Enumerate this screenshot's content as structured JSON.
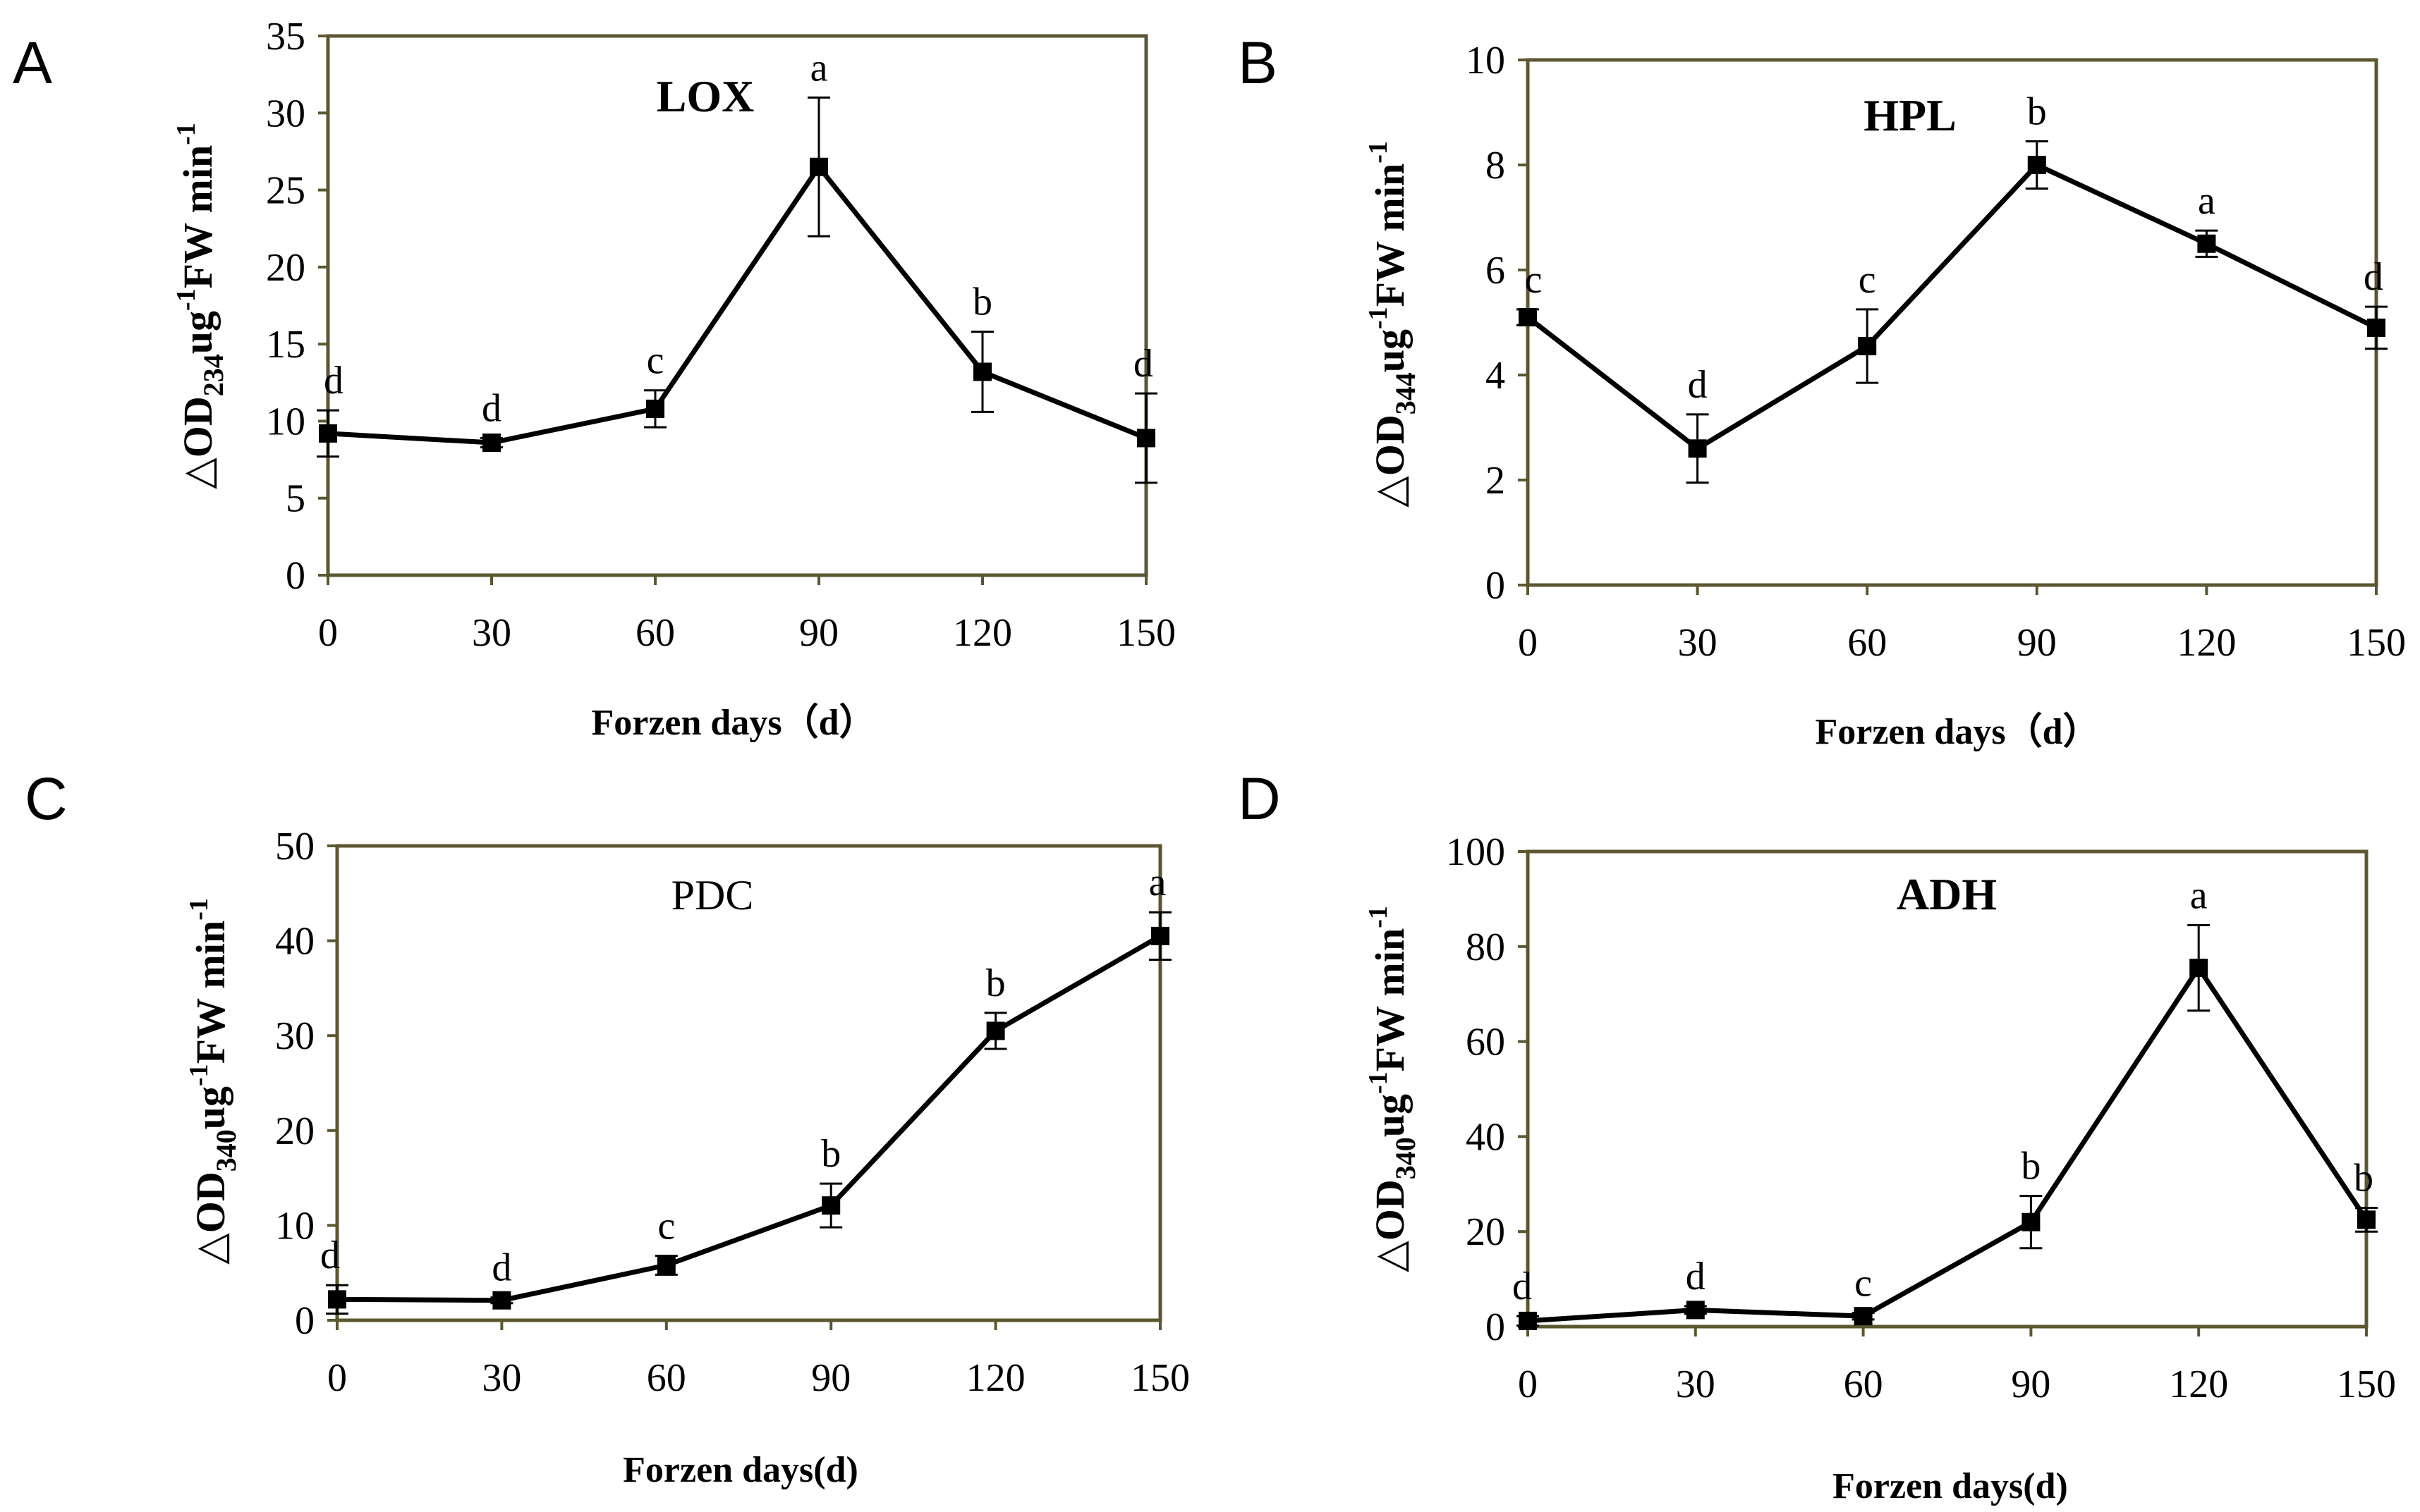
{
  "chart_data": [
    {
      "panel": "A",
      "type": "line",
      "title": "LOX",
      "title_style": "bold",
      "ylabel": [
        "△OD",
        "234",
        "ug",
        "-1",
        "FW min",
        "-1"
      ],
      "xlabel": "Forzen  days（d）",
      "x": [
        0,
        30,
        60,
        90,
        120,
        150
      ],
      "x_tick_labels": [
        "0",
        "30",
        "60",
        "90",
        "120",
        "150"
      ],
      "y_ticks": [
        0,
        5,
        10,
        15,
        20,
        25,
        30,
        35
      ],
      "y_tick_labels": [
        "0",
        "5",
        "10",
        "15",
        "20",
        "25",
        "30",
        "35"
      ],
      "ylim": [
        0,
        35
      ],
      "values": [
        9.2,
        8.6,
        10.8,
        26.5,
        13.2,
        8.9
      ],
      "errors": [
        1.5,
        0.3,
        1.2,
        4.5,
        2.6,
        2.9
      ],
      "significance": [
        "d",
        "d",
        "c",
        "a",
        "b",
        "d"
      ]
    },
    {
      "panel": "B",
      "type": "line",
      "title": "HPL",
      "title_style": "bold",
      "ylabel": [
        "△OD",
        "344",
        "ug",
        "-1",
        "FW min",
        "-1"
      ],
      "xlabel": "Forzen  days（d）",
      "x": [
        0,
        30,
        60,
        90,
        120,
        150
      ],
      "x_tick_labels": [
        "0",
        "30",
        "60",
        "90",
        "120",
        "150"
      ],
      "y_ticks": [
        0,
        2,
        4,
        6,
        8,
        10
      ],
      "y_tick_labels": [
        "0",
        "2",
        "4",
        "6",
        "8",
        "10"
      ],
      "ylim": [
        0,
        10
      ],
      "values": [
        5.1,
        2.6,
        4.55,
        8.0,
        6.5,
        4.9
      ],
      "errors": [
        0.15,
        0.65,
        0.7,
        0.45,
        0.25,
        0.4
      ],
      "significance": [
        "c",
        "d",
        "c",
        "b",
        "a",
        "d"
      ]
    },
    {
      "panel": "C",
      "type": "line",
      "title": "PDC",
      "title_style": "plain",
      "ylabel": [
        "△OD",
        "340",
        "ug",
        "-1",
        "FW min",
        "-1"
      ],
      "xlabel": "Forzen   days(d)",
      "x": [
        0,
        30,
        60,
        90,
        120,
        150
      ],
      "x_tick_labels": [
        "0",
        "30",
        "60",
        "90",
        "120",
        "150"
      ],
      "y_ticks": [
        0,
        10,
        20,
        30,
        40,
        50
      ],
      "y_tick_labels": [
        "0",
        "10",
        "20",
        "30",
        "40",
        "50"
      ],
      "ylim": [
        0,
        50
      ],
      "values": [
        2.2,
        2.1,
        5.8,
        12.1,
        30.5,
        40.5
      ],
      "errors": [
        1.5,
        0.3,
        1.0,
        2.3,
        1.9,
        2.5
      ],
      "significance": [
        "d",
        "d",
        "c",
        "b",
        "b",
        "a"
      ]
    },
    {
      "panel": "D",
      "type": "line",
      "title": "ADH",
      "title_style": "bold",
      "ylabel": [
        "△OD",
        "340",
        "ug",
        "-1",
        "FW min",
        "-1"
      ],
      "xlabel": "Forzen  days(d)",
      "x": [
        0,
        30,
        60,
        90,
        120,
        150
      ],
      "x_tick_labels": [
        "0",
        "30",
        "60",
        "90",
        "120",
        "150"
      ],
      "y_ticks": [
        0,
        20,
        40,
        60,
        80,
        100
      ],
      "y_tick_labels": [
        "0",
        "20",
        "40",
        "60",
        "80",
        "100"
      ],
      "ylim": [
        0,
        100
      ],
      "values": [
        1.2,
        3.5,
        2.2,
        22.0,
        75.5,
        22.5
      ],
      "errors": [
        1.0,
        0.8,
        0.7,
        5.5,
        9.0,
        2.5
      ],
      "significance": [
        "d",
        "d",
        "c",
        "b",
        "a",
        "b"
      ]
    }
  ]
}
